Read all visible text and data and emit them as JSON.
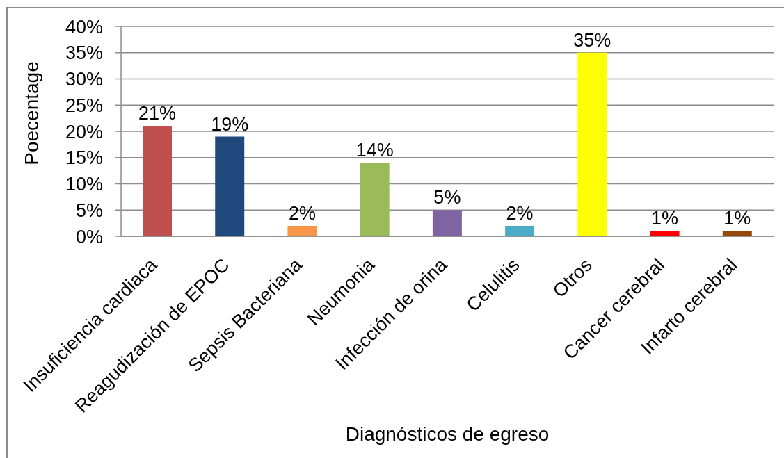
{
  "chart_data": {
    "type": "bar",
    "xlabel": "Diagnósticos de egreso",
    "ylabel": "Poecentage",
    "categories": [
      "Insuficiencia cardiaca",
      "Reagudización de EPOC",
      "Sepsis Bacteriana",
      "Neumonia",
      "Infección de orina",
      "Celulitis",
      "Otros",
      "Cancer cerebral",
      "Infarto cerebral"
    ],
    "values": [
      21,
      19,
      2,
      14,
      5,
      2,
      35,
      1,
      1
    ],
    "colors": [
      "#c0504d",
      "#1f497d",
      "#f79646",
      "#9bbb59",
      "#8064a2",
      "#4bacc6",
      "#ffff00",
      "#ff0000",
      "#974806"
    ],
    "value_labels": [
      "21%",
      "19%",
      "2%",
      "14%",
      "5%",
      "2%",
      "35%",
      "1%",
      "1%"
    ],
    "ylim": [
      0,
      40
    ],
    "yticks": [
      {
        "value": 0,
        "label": "0%"
      },
      {
        "value": 5,
        "label": "5%"
      },
      {
        "value": 10,
        "label": "10%"
      },
      {
        "value": 15,
        "label": "15%"
      },
      {
        "value": 20,
        "label": "20%"
      },
      {
        "value": 25,
        "label": "25%"
      },
      {
        "value": 30,
        "label": "30%"
      },
      {
        "value": 35,
        "label": "35%"
      },
      {
        "value": 40,
        "label": "40%"
      }
    ],
    "grid": "y"
  }
}
